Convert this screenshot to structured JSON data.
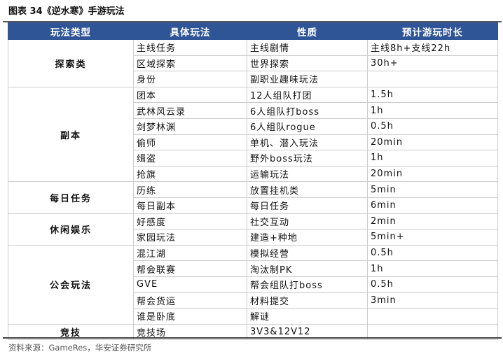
{
  "title": "图表 34《逆水寒》手游玩法",
  "headers": [
    "玩法类型",
    "具体玩法",
    "性质",
    "预计游玩时长"
  ],
  "groups": [
    {
      "category": "探索类",
      "rows": [
        [
          "主线任务",
          "主线剧情",
          "主线8h+支线22h"
        ],
        [
          "区域探索",
          "世界探索",
          "30h+"
        ],
        [
          "身份",
          "副职业趣味玩法",
          ""
        ]
      ]
    },
    {
      "category": "副本",
      "rows": [
        [
          "团本",
          "12人组队打团",
          "1.5h"
        ],
        [
          "武林风云录",
          "6人组队打boss",
          "1h"
        ],
        [
          "剑梦林渊",
          "6人组队rogue",
          "0.5h"
        ],
        [
          "偷师",
          "单机、潜入玩法",
          "20min"
        ],
        [
          "缉盗",
          "野外boss玩法",
          "1h"
        ],
        [
          "抢旗",
          "运输玩法",
          "20min"
        ]
      ]
    },
    {
      "category": "每日任务",
      "rows": [
        [
          "历练",
          "放置挂机类",
          "5min"
        ],
        [
          "每日副本",
          "每日任务",
          "6min"
        ]
      ]
    },
    {
      "category": "休闲娱乐",
      "rows": [
        [
          "好感度",
          "社交互动",
          "2min"
        ],
        [
          "家园玩法",
          "建造+种地",
          "5min+"
        ]
      ]
    },
    {
      "category": "公会玩法",
      "rows": [
        [
          "混江湖",
          "模拟经营",
          "0.5h"
        ],
        [
          "帮会联赛",
          "淘汰制PK",
          "1h"
        ],
        [
          "GVE",
          "帮会组队打boss",
          "0.5h"
        ],
        [
          "帮会货运",
          "材料提交",
          "3min"
        ],
        [
          "谁是卧底",
          "解谜",
          ""
        ]
      ]
    },
    {
      "category": "竞技",
      "rows": [
        [
          "竞技场",
          "3V3&12V12",
          ""
        ]
      ]
    }
  ],
  "source": "资料来源：GameRes，华安证券研究所",
  "colors": {
    "header_bg": "#2f5597"
  }
}
